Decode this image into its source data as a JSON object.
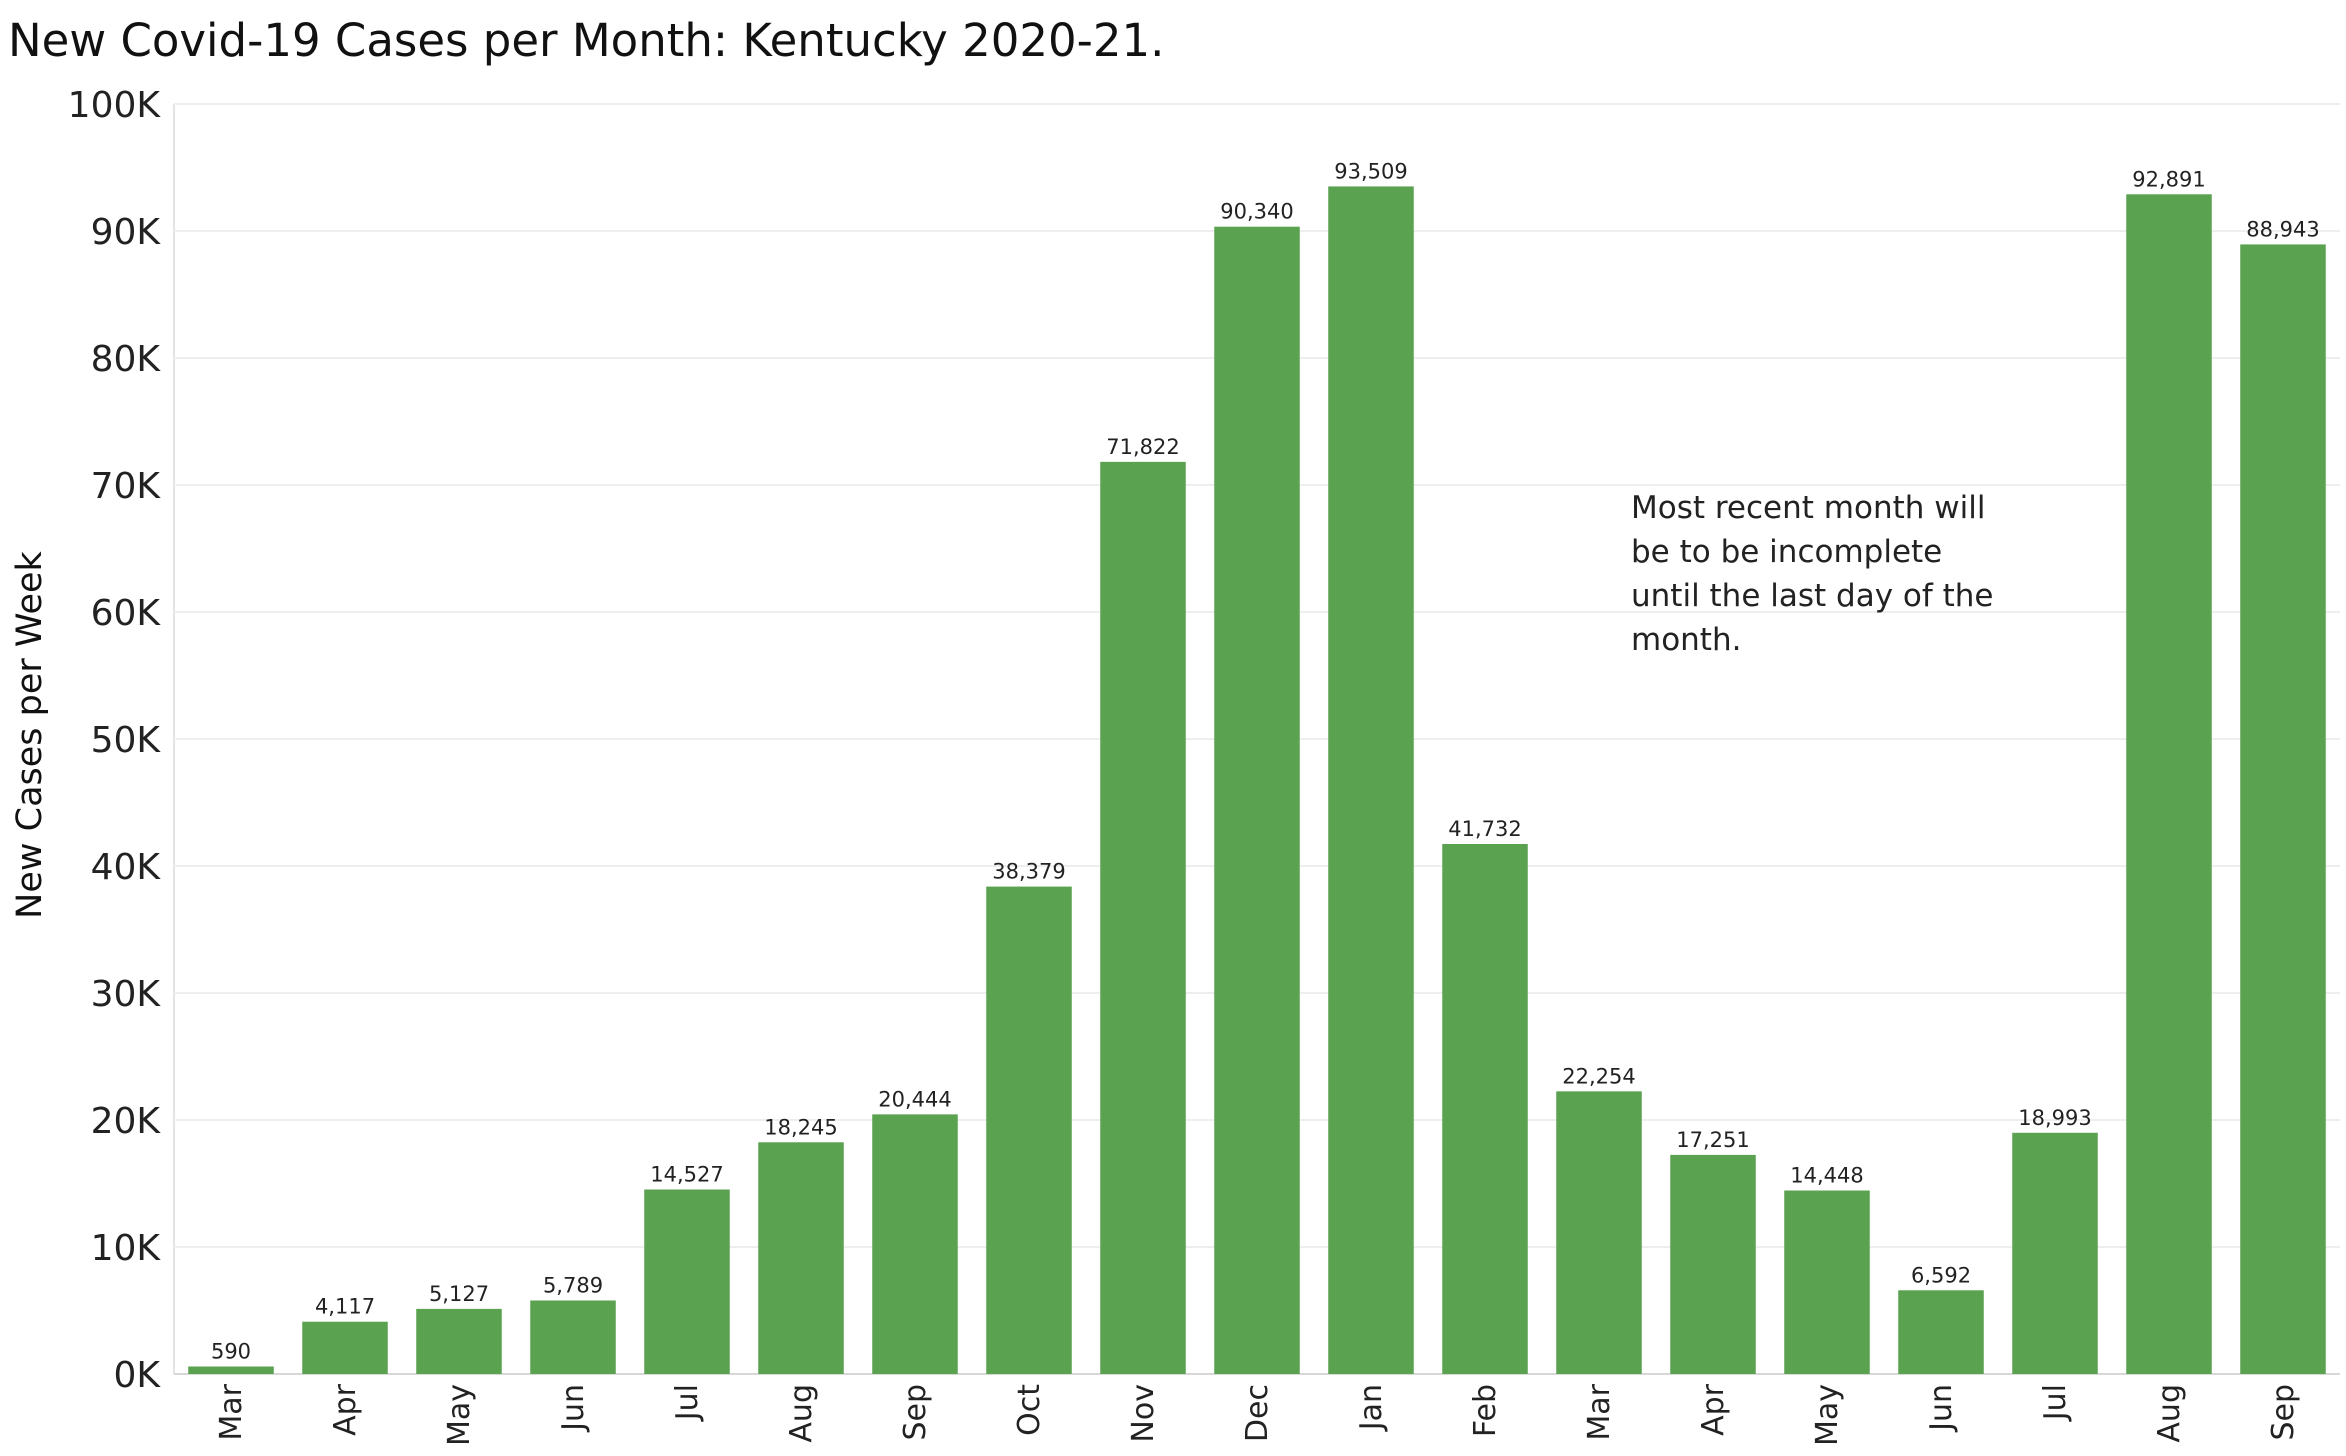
{
  "chart_data": {
    "type": "bar",
    "title": "New Covid-19 Cases per Month:  Kentucky 2020-21.",
    "xlabel": "",
    "ylabel": "New Cases per Week",
    "categories": [
      "Mar",
      "Apr",
      "May",
      "Jun",
      "Jul",
      "Aug",
      "Sep",
      "Oct",
      "Nov",
      "Dec",
      "Jan",
      "Feb",
      "Mar",
      "Apr",
      "May",
      "Jun",
      "Jul",
      "Aug",
      "Sep"
    ],
    "values": [
      590,
      4117,
      5127,
      5789,
      14527,
      18245,
      20444,
      38379,
      71822,
      90340,
      93509,
      41732,
      22254,
      17251,
      14448,
      6592,
      18993,
      92891,
      88943
    ],
    "value_labels": [
      "590",
      "4,117",
      "5,127",
      "5,789",
      "14,527",
      "18,245",
      "20,444",
      "38,379",
      "71,822",
      "90,340",
      "93,509",
      "41,732",
      "22,254",
      "17,251",
      "14,448",
      "6,592",
      "18,993",
      "92,891",
      "88,943"
    ],
    "ylim": [
      0,
      100000
    ],
    "y_ticks": [
      {
        "value": 0,
        "label": "0K"
      },
      {
        "value": 10000,
        "label": "10K"
      },
      {
        "value": 20000,
        "label": "20K"
      },
      {
        "value": 30000,
        "label": "30K"
      },
      {
        "value": 40000,
        "label": "40K"
      },
      {
        "value": 50000,
        "label": "50K"
      },
      {
        "value": 60000,
        "label": "60K"
      },
      {
        "value": 70000,
        "label": "70K"
      },
      {
        "value": 80000,
        "label": "80K"
      },
      {
        "value": 90000,
        "label": "90K"
      },
      {
        "value": 100000,
        "label": "100K"
      }
    ],
    "grid": true,
    "bar_color": "#5aa150",
    "annotation": {
      "lines": [
        "Most recent month will",
        "be to be incomplete",
        "until the last day of the",
        "month."
      ]
    }
  }
}
